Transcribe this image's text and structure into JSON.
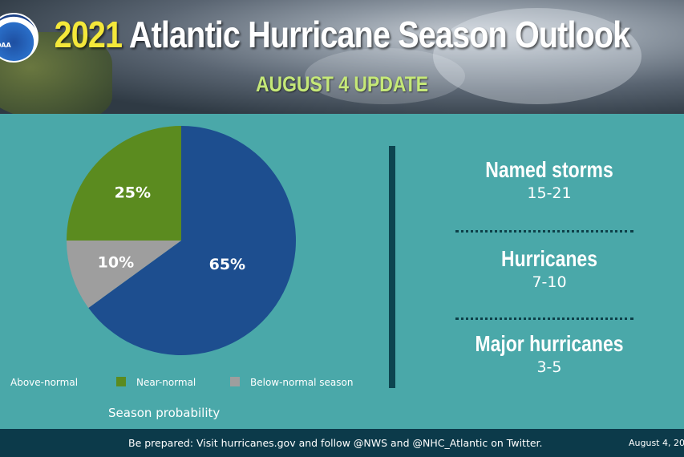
{
  "header": {
    "title_year": "2021",
    "title_rest": "Atlantic Hurricane Season Outlook",
    "subtitle": "AUGUST 4 UPDATE",
    "logo_text": "NOAA"
  },
  "chart_data": {
    "type": "pie",
    "title": "",
    "caption": "Season probability",
    "slices": [
      {
        "name": "Above-normal",
        "value": 65,
        "label": "65%",
        "color": "#1d4e8f"
      },
      {
        "name": "Below-normal season",
        "value": 10,
        "label": "10%",
        "color": "#9e9e9e"
      },
      {
        "name": "Near-normal",
        "value": 25,
        "label": "25%",
        "color": "#5b8b1f"
      }
    ],
    "legend": [
      "Above-normal",
      "Near-normal",
      "Below-normal season"
    ],
    "legend_placement": "bottom"
  },
  "stats": [
    {
      "label": "Named storms",
      "value": "15-21"
    },
    {
      "label": "Hurricanes",
      "value": "7-10"
    },
    {
      "label": "Major hurricanes",
      "value": "3-5"
    }
  ],
  "footer": {
    "message": "Be prepared: Visit hurricanes.gov and follow @NWS and @NHC_Atlantic on Twitter.",
    "date": "August 4, 20"
  },
  "colors": {
    "background": "#49a7a8",
    "footer": "#0c3a4a",
    "accent_yellow": "#f4e83a",
    "accent_green": "#c5e878"
  }
}
